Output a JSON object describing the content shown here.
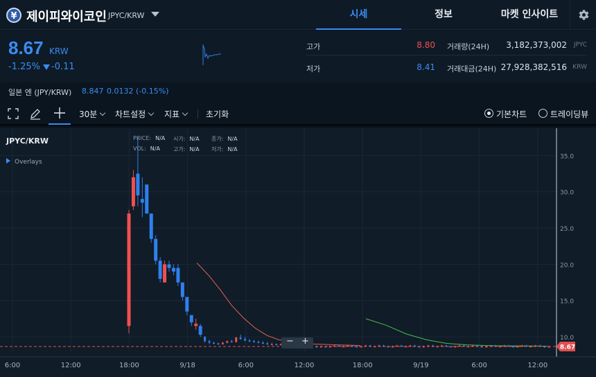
{
  "header": {
    "coin_symbol_glyph": "¥",
    "coin_name": "제이피와이코인",
    "pair": "JPYC/KRW",
    "tabs": [
      {
        "label": "시세",
        "active": true
      },
      {
        "label": "정보",
        "active": false
      },
      {
        "label": "마켓 인사이트",
        "active": false
      }
    ],
    "settings_icon": "gear-icon"
  },
  "summary": {
    "price": "8.67",
    "unit": "KRW",
    "change_rate": "-1.25%",
    "change_amount": "-0.11",
    "high_label": "고가",
    "high_value": "8.80",
    "low_label": "저가",
    "low_value": "8.41",
    "volume_label": "거래량(24H)",
    "volume_value": "3,182,373,002",
    "volume_unit": "JPYC",
    "amount_label": "거래대금(24H)",
    "amount_value": "27,928,382,516",
    "amount_unit": "KRW"
  },
  "reference": {
    "label": "일본 엔 (JPY/KRW)",
    "value": "8.847",
    "change": "0.0132 (-0.15%)"
  },
  "toolbar": {
    "interval": "30분",
    "chart_settings": "차트설정",
    "indicators": "지표",
    "reset": "초기화",
    "view_basic": "기본차트",
    "view_trading": "트레이딩뷰"
  },
  "chart": {
    "symbol": "JPYC/KRW",
    "overlays_label": "Overlays",
    "legend": {
      "price_label": "PRICE:",
      "price_val": "N/A",
      "open_label": "시가:",
      "open_val": "N/A",
      "close_label": "종가:",
      "close_val": "N/A",
      "vol_label": "VOL:",
      "vol_val": "N/A",
      "high_label": "고가:",
      "high_val": "N/A",
      "low_label": "저가:",
      "low_val": "N/A"
    },
    "zoom_out": "−",
    "zoom_in": "+",
    "current_price_tag": "8.67"
  },
  "chart_data": {
    "type": "candlestick",
    "y_ticks": [
      "35.0",
      "30.0",
      "25.0",
      "20.0",
      "15.0",
      "10.0"
    ],
    "ylim": [
      8.0,
      38.0
    ],
    "x_ticks": [
      "6:00",
      "12:00",
      "18:00",
      "9/18",
      "6:00",
      "12:00",
      "18:00",
      "9/19",
      "6:00",
      "12:00"
    ],
    "colors": {
      "up": "#f0504f",
      "down": "#2f80ed",
      "ma_short": "#e8604f",
      "ma_long": "#46c046"
    },
    "candles": [
      {
        "o": 11.5,
        "h": 27.5,
        "l": 10.5,
        "c": 27.0
      },
      {
        "o": 28.0,
        "h": 33.0,
        "l": 27.5,
        "c": 32.0
      },
      {
        "o": 32.5,
        "h": 37.5,
        "l": 28.0,
        "c": 29.5
      },
      {
        "o": 29.0,
        "h": 32.0,
        "l": 26.5,
        "c": 28.5
      },
      {
        "o": 31.0,
        "h": 31.0,
        "l": 27.0,
        "c": 27.0
      },
      {
        "o": 27.0,
        "h": 27.0,
        "l": 23.0,
        "c": 23.5
      },
      {
        "o": 23.5,
        "h": 24.0,
        "l": 20.0,
        "c": 20.5
      },
      {
        "o": 20.5,
        "h": 21.0,
        "l": 17.5,
        "c": 18.0
      },
      {
        "o": 17.5,
        "h": 20.5,
        "l": 17.5,
        "c": 20.0
      },
      {
        "o": 20.0,
        "h": 20.5,
        "l": 19.0,
        "c": 19.5
      },
      {
        "o": 19.5,
        "h": 20.0,
        "l": 18.5,
        "c": 19.0
      },
      {
        "o": 19.5,
        "h": 20.0,
        "l": 17.0,
        "c": 17.5
      },
      {
        "o": 17.5,
        "h": 17.5,
        "l": 15.0,
        "c": 15.5
      },
      {
        "o": 15.5,
        "h": 15.5,
        "l": 13.0,
        "c": 13.5
      },
      {
        "o": 13.0,
        "h": 13.0,
        "l": 11.5,
        "c": 12.0
      },
      {
        "o": 11.5,
        "h": 12.5,
        "l": 11.0,
        "c": 11.8
      },
      {
        "o": 11.5,
        "h": 11.8,
        "l": 10.0,
        "c": 10.3
      },
      {
        "o": 10.0,
        "h": 10.1,
        "l": 9.2,
        "c": 9.4
      },
      {
        "o": 9.4,
        "h": 9.6,
        "l": 9.0,
        "c": 9.2
      },
      {
        "o": 9.2,
        "h": 9.3,
        "l": 9.0,
        "c": 9.1
      },
      {
        "o": 9.1,
        "h": 9.2,
        "l": 8.9,
        "c": 9.0
      },
      {
        "o": 9.0,
        "h": 9.3,
        "l": 8.9,
        "c": 9.2
      },
      {
        "o": 9.2,
        "h": 9.5,
        "l": 9.1,
        "c": 9.4
      },
      {
        "o": 9.4,
        "h": 9.6,
        "l": 9.2,
        "c": 9.3
      },
      {
        "o": 9.3,
        "h": 10.0,
        "l": 9.2,
        "c": 9.9
      },
      {
        "o": 9.9,
        "h": 10.3,
        "l": 9.6,
        "c": 9.7
      },
      {
        "o": 9.7,
        "h": 10.0,
        "l": 9.4,
        "c": 9.5
      },
      {
        "o": 9.5,
        "h": 9.7,
        "l": 9.3,
        "c": 9.4
      },
      {
        "o": 9.4,
        "h": 9.6,
        "l": 9.2,
        "c": 9.3
      },
      {
        "o": 9.3,
        "h": 9.5,
        "l": 9.1,
        "c": 9.2
      },
      {
        "o": 9.2,
        "h": 9.4,
        "l": 9.0,
        "c": 9.1
      },
      {
        "o": 9.1,
        "h": 9.3,
        "l": 8.9,
        "c": 9.0
      },
      {
        "o": 9.0,
        "h": 9.2,
        "l": 8.9,
        "c": 9.0
      },
      {
        "o": 9.0,
        "h": 9.1,
        "l": 8.8,
        "c": 8.9
      },
      {
        "o": 8.9,
        "h": 9.1,
        "l": 8.8,
        "c": 9.0
      },
      {
        "o": 9.0,
        "h": 9.1,
        "l": 8.8,
        "c": 8.9
      },
      {
        "o": 8.9,
        "h": 9.0,
        "l": 8.7,
        "c": 8.8
      },
      {
        "o": 8.8,
        "h": 9.0,
        "l": 8.7,
        "c": 8.9
      },
      {
        "o": 8.9,
        "h": 9.0,
        "l": 8.7,
        "c": 8.8
      },
      {
        "o": 8.8,
        "h": 8.9,
        "l": 8.6,
        "c": 8.7
      },
      {
        "o": 8.7,
        "h": 8.9,
        "l": 8.6,
        "c": 8.8
      },
      {
        "o": 8.8,
        "h": 8.9,
        "l": 8.6,
        "c": 8.7
      },
      {
        "o": 8.7,
        "h": 8.8,
        "l": 8.5,
        "c": 8.6
      },
      {
        "o": 8.6,
        "h": 8.8,
        "l": 8.5,
        "c": 8.7
      },
      {
        "o": 8.7,
        "h": 8.8,
        "l": 8.5,
        "c": 8.6
      },
      {
        "o": 8.6,
        "h": 8.8,
        "l": 8.5,
        "c": 8.7
      },
      {
        "o": 8.7,
        "h": 8.9,
        "l": 8.6,
        "c": 8.8
      },
      {
        "o": 8.8,
        "h": 8.9,
        "l": 8.6,
        "c": 8.7
      },
      {
        "o": 8.7,
        "h": 8.8,
        "l": 8.6,
        "c": 8.7
      },
      {
        "o": 8.7,
        "h": 8.9,
        "l": 8.6,
        "c": 8.8
      },
      {
        "o": 8.8,
        "h": 8.9,
        "l": 8.6,
        "c": 8.7
      },
      {
        "o": 8.7,
        "h": 8.8,
        "l": 8.5,
        "c": 8.6
      },
      {
        "o": 8.6,
        "h": 8.8,
        "l": 8.5,
        "c": 8.7
      },
      {
        "o": 8.7,
        "h": 8.9,
        "l": 8.6,
        "c": 8.8
      },
      {
        "o": 8.8,
        "h": 8.9,
        "l": 8.6,
        "c": 8.7
      },
      {
        "o": 8.7,
        "h": 8.8,
        "l": 8.6,
        "c": 8.7
      },
      {
        "o": 8.7,
        "h": 8.9,
        "l": 8.6,
        "c": 8.8
      },
      {
        "o": 8.8,
        "h": 8.9,
        "l": 8.6,
        "c": 8.7
      },
      {
        "o": 8.7,
        "h": 8.8,
        "l": 8.5,
        "c": 8.6
      },
      {
        "o": 8.6,
        "h": 8.8,
        "l": 8.5,
        "c": 8.7
      },
      {
        "o": 8.7,
        "h": 8.9,
        "l": 8.6,
        "c": 8.8
      },
      {
        "o": 8.8,
        "h": 8.9,
        "l": 8.6,
        "c": 8.7
      },
      {
        "o": 8.7,
        "h": 8.8,
        "l": 8.6,
        "c": 8.7
      },
      {
        "o": 8.7,
        "h": 8.9,
        "l": 8.6,
        "c": 8.8
      },
      {
        "o": 8.8,
        "h": 8.9,
        "l": 8.6,
        "c": 8.7
      },
      {
        "o": 8.7,
        "h": 8.8,
        "l": 8.5,
        "c": 8.6
      },
      {
        "o": 8.6,
        "h": 8.8,
        "l": 8.5,
        "c": 8.7
      },
      {
        "o": 8.7,
        "h": 8.9,
        "l": 8.6,
        "c": 8.8
      },
      {
        "o": 8.8,
        "h": 8.9,
        "l": 8.6,
        "c": 8.7
      },
      {
        "o": 8.7,
        "h": 8.8,
        "l": 8.6,
        "c": 8.7
      },
      {
        "o": 8.7,
        "h": 8.9,
        "l": 8.6,
        "c": 8.8
      },
      {
        "o": 8.8,
        "h": 8.9,
        "l": 8.6,
        "c": 8.7
      },
      {
        "o": 8.7,
        "h": 8.8,
        "l": 8.5,
        "c": 8.6
      },
      {
        "o": 8.6,
        "h": 8.8,
        "l": 8.5,
        "c": 8.7
      },
      {
        "o": 8.7,
        "h": 8.9,
        "l": 8.6,
        "c": 8.8
      },
      {
        "o": 8.8,
        "h": 8.9,
        "l": 8.6,
        "c": 8.7
      },
      {
        "o": 8.7,
        "h": 8.8,
        "l": 8.6,
        "c": 8.7
      },
      {
        "o": 8.7,
        "h": 8.9,
        "l": 8.6,
        "c": 8.8
      },
      {
        "o": 8.8,
        "h": 8.9,
        "l": 8.6,
        "c": 8.7
      },
      {
        "o": 8.7,
        "h": 8.8,
        "l": 8.5,
        "c": 8.6
      },
      {
        "o": 8.6,
        "h": 8.8,
        "l": 8.5,
        "c": 8.7
      },
      {
        "o": 8.7,
        "h": 8.9,
        "l": 8.6,
        "c": 8.8
      },
      {
        "o": 8.8,
        "h": 8.9,
        "l": 8.6,
        "c": 8.7
      },
      {
        "o": 8.7,
        "h": 8.8,
        "l": 8.6,
        "c": 8.7
      },
      {
        "o": 8.7,
        "h": 8.9,
        "l": 8.6,
        "c": 8.8
      },
      {
        "o": 8.8,
        "h": 8.9,
        "l": 8.6,
        "c": 8.7
      },
      {
        "o": 8.7,
        "h": 8.8,
        "l": 8.5,
        "c": 8.6
      },
      {
        "o": 8.6,
        "h": 8.8,
        "l": 8.5,
        "c": 8.7
      },
      {
        "o": 8.7,
        "h": 8.9,
        "l": 8.6,
        "c": 8.8
      },
      {
        "o": 8.8,
        "h": 8.9,
        "l": 8.6,
        "c": 8.7
      },
      {
        "o": 8.7,
        "h": 8.8,
        "l": 8.6,
        "c": 8.7
      },
      {
        "o": 8.7,
        "h": 8.9,
        "l": 8.6,
        "c": 8.8
      },
      {
        "o": 8.8,
        "h": 8.9,
        "l": 8.6,
        "c": 8.7
      },
      {
        "o": 8.7,
        "h": 8.8,
        "l": 8.5,
        "c": 8.6
      },
      {
        "o": 8.6,
        "h": 8.8,
        "l": 8.5,
        "c": 8.67
      }
    ],
    "ma_short": [
      20.2,
      18.5,
      16.5,
      14.3,
      12.6,
      11.2,
      10.2,
      9.6,
      9.3,
      9.1,
      9.0,
      8.95,
      8.9,
      8.85,
      8.8
    ],
    "ma_long": [
      12.5,
      11.6,
      10.4,
      9.6,
      9.1,
      8.9,
      8.8,
      8.75,
      8.75,
      8.7
    ],
    "current_price": 8.67
  }
}
